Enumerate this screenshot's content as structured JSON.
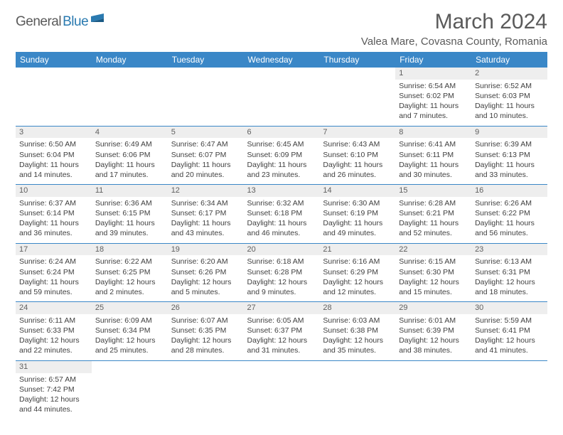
{
  "logo": {
    "text1": "General",
    "text2": "Blue"
  },
  "title": "March 2024",
  "location": "Valea Mare, Covasna County, Romania",
  "colors": {
    "header_bg": "#3a87c7",
    "header_text": "#ffffff",
    "cell_border": "#3a87c7",
    "daynum_bg": "#eeeeee",
    "text": "#404040",
    "title_text": "#5a5a5a",
    "logo_gray": "#5a5a5a",
    "logo_blue": "#2a7ab0"
  },
  "dayNames": [
    "Sunday",
    "Monday",
    "Tuesday",
    "Wednesday",
    "Thursday",
    "Friday",
    "Saturday"
  ],
  "weeks": [
    [
      null,
      null,
      null,
      null,
      null,
      {
        "n": "1",
        "sr": "6:54 AM",
        "ss": "6:02 PM",
        "dl": "11 hours and 7 minutes."
      },
      {
        "n": "2",
        "sr": "6:52 AM",
        "ss": "6:03 PM",
        "dl": "11 hours and 10 minutes."
      }
    ],
    [
      {
        "n": "3",
        "sr": "6:50 AM",
        "ss": "6:04 PM",
        "dl": "11 hours and 14 minutes."
      },
      {
        "n": "4",
        "sr": "6:49 AM",
        "ss": "6:06 PM",
        "dl": "11 hours and 17 minutes."
      },
      {
        "n": "5",
        "sr": "6:47 AM",
        "ss": "6:07 PM",
        "dl": "11 hours and 20 minutes."
      },
      {
        "n": "6",
        "sr": "6:45 AM",
        "ss": "6:09 PM",
        "dl": "11 hours and 23 minutes."
      },
      {
        "n": "7",
        "sr": "6:43 AM",
        "ss": "6:10 PM",
        "dl": "11 hours and 26 minutes."
      },
      {
        "n": "8",
        "sr": "6:41 AM",
        "ss": "6:11 PM",
        "dl": "11 hours and 30 minutes."
      },
      {
        "n": "9",
        "sr": "6:39 AM",
        "ss": "6:13 PM",
        "dl": "11 hours and 33 minutes."
      }
    ],
    [
      {
        "n": "10",
        "sr": "6:37 AM",
        "ss": "6:14 PM",
        "dl": "11 hours and 36 minutes."
      },
      {
        "n": "11",
        "sr": "6:36 AM",
        "ss": "6:15 PM",
        "dl": "11 hours and 39 minutes."
      },
      {
        "n": "12",
        "sr": "6:34 AM",
        "ss": "6:17 PM",
        "dl": "11 hours and 43 minutes."
      },
      {
        "n": "13",
        "sr": "6:32 AM",
        "ss": "6:18 PM",
        "dl": "11 hours and 46 minutes."
      },
      {
        "n": "14",
        "sr": "6:30 AM",
        "ss": "6:19 PM",
        "dl": "11 hours and 49 minutes."
      },
      {
        "n": "15",
        "sr": "6:28 AM",
        "ss": "6:21 PM",
        "dl": "11 hours and 52 minutes."
      },
      {
        "n": "16",
        "sr": "6:26 AM",
        "ss": "6:22 PM",
        "dl": "11 hours and 56 minutes."
      }
    ],
    [
      {
        "n": "17",
        "sr": "6:24 AM",
        "ss": "6:24 PM",
        "dl": "11 hours and 59 minutes."
      },
      {
        "n": "18",
        "sr": "6:22 AM",
        "ss": "6:25 PM",
        "dl": "12 hours and 2 minutes."
      },
      {
        "n": "19",
        "sr": "6:20 AM",
        "ss": "6:26 PM",
        "dl": "12 hours and 5 minutes."
      },
      {
        "n": "20",
        "sr": "6:18 AM",
        "ss": "6:28 PM",
        "dl": "12 hours and 9 minutes."
      },
      {
        "n": "21",
        "sr": "6:16 AM",
        "ss": "6:29 PM",
        "dl": "12 hours and 12 minutes."
      },
      {
        "n": "22",
        "sr": "6:15 AM",
        "ss": "6:30 PM",
        "dl": "12 hours and 15 minutes."
      },
      {
        "n": "23",
        "sr": "6:13 AM",
        "ss": "6:31 PM",
        "dl": "12 hours and 18 minutes."
      }
    ],
    [
      {
        "n": "24",
        "sr": "6:11 AM",
        "ss": "6:33 PM",
        "dl": "12 hours and 22 minutes."
      },
      {
        "n": "25",
        "sr": "6:09 AM",
        "ss": "6:34 PM",
        "dl": "12 hours and 25 minutes."
      },
      {
        "n": "26",
        "sr": "6:07 AM",
        "ss": "6:35 PM",
        "dl": "12 hours and 28 minutes."
      },
      {
        "n": "27",
        "sr": "6:05 AM",
        "ss": "6:37 PM",
        "dl": "12 hours and 31 minutes."
      },
      {
        "n": "28",
        "sr": "6:03 AM",
        "ss": "6:38 PM",
        "dl": "12 hours and 35 minutes."
      },
      {
        "n": "29",
        "sr": "6:01 AM",
        "ss": "6:39 PM",
        "dl": "12 hours and 38 minutes."
      },
      {
        "n": "30",
        "sr": "5:59 AM",
        "ss": "6:41 PM",
        "dl": "12 hours and 41 minutes."
      }
    ],
    [
      {
        "n": "31",
        "sr": "6:57 AM",
        "ss": "7:42 PM",
        "dl": "12 hours and 44 minutes."
      },
      null,
      null,
      null,
      null,
      null,
      null
    ]
  ],
  "labels": {
    "sunrise": "Sunrise:",
    "sunset": "Sunset:",
    "daylight": "Daylight:"
  }
}
